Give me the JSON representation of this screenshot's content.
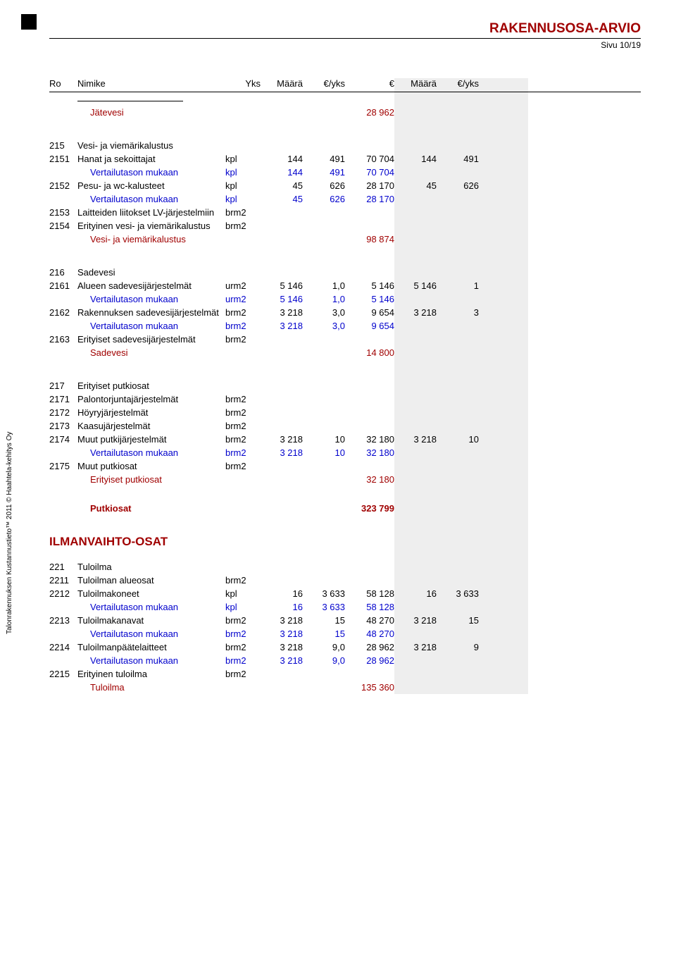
{
  "header": {
    "title": "RAKENNUSOSA-ARVIO",
    "page": "Sivu 10/19"
  },
  "columns": [
    "Ro",
    "Nimike",
    "Yks",
    "Määrä",
    "€/yks",
    "€",
    "Määrä",
    "€/yks",
    ""
  ],
  "vertical_text": "Talonrakennuksen Kustannustieto™ 2011 © Haahtela-kehitys Oy",
  "big_heading": "ILMANVAIHTO-OSAT",
  "sections": [
    {
      "pre_sep": true,
      "rows": [
        {
          "cls": "red indent",
          "c": [
            "",
            "Jätevesi",
            "",
            "",
            "",
            "28 962",
            "",
            "",
            ""
          ]
        }
      ]
    },
    {
      "rows": [
        {
          "cls": "",
          "c": [
            "215",
            "Vesi- ja viemärikalustus",
            "",
            "",
            "",
            "",
            "",
            "",
            ""
          ]
        },
        {
          "cls": "",
          "c": [
            "2151",
            "Hanat ja sekoittajat",
            "kpl",
            "144",
            "491",
            "70 704",
            "144",
            "491",
            ""
          ]
        },
        {
          "cls": "blue indent",
          "c": [
            "",
            "Vertailutason mukaan",
            "kpl",
            "144",
            "491",
            "70 704",
            "",
            "",
            ""
          ]
        },
        {
          "cls": "",
          "c": [
            "2152",
            "Pesu- ja wc-kalusteet",
            "kpl",
            "45",
            "626",
            "28 170",
            "45",
            "626",
            ""
          ]
        },
        {
          "cls": "blue indent",
          "c": [
            "",
            "Vertailutason mukaan",
            "kpl",
            "45",
            "626",
            "28 170",
            "",
            "",
            ""
          ]
        },
        {
          "cls": "",
          "c": [
            "2153",
            "Laitteiden liitokset LV-järjestelmiin",
            "brm2",
            "",
            "",
            "",
            "",
            "",
            ""
          ]
        },
        {
          "cls": "",
          "c": [
            "2154",
            "Erityinen vesi- ja viemärikalustus",
            "brm2",
            "",
            "",
            "",
            "",
            "",
            ""
          ]
        },
        {
          "cls": "red indent",
          "c": [
            "",
            "Vesi- ja viemärikalustus",
            "",
            "",
            "",
            "98 874",
            "",
            "",
            ""
          ]
        }
      ]
    },
    {
      "rows": [
        {
          "cls": "",
          "c": [
            "216",
            "Sadevesi",
            "",
            "",
            "",
            "",
            "",
            "",
            ""
          ]
        },
        {
          "cls": "",
          "c": [
            "2161",
            "Alueen sadevesijärjestelmät",
            "urm2",
            "5 146",
            "1,0",
            "5 146",
            "5 146",
            "1",
            ""
          ]
        },
        {
          "cls": "blue indent",
          "c": [
            "",
            "Vertailutason mukaan",
            "urm2",
            "5 146",
            "1,0",
            "5 146",
            "",
            "",
            ""
          ]
        },
        {
          "cls": "",
          "c": [
            "2162",
            "Rakennuksen sadevesijärjestelmät",
            "brm2",
            "3 218",
            "3,0",
            "9 654",
            "3 218",
            "3",
            ""
          ]
        },
        {
          "cls": "blue indent",
          "c": [
            "",
            "Vertailutason mukaan",
            "brm2",
            "3 218",
            "3,0",
            "9 654",
            "",
            "",
            ""
          ]
        },
        {
          "cls": "",
          "c": [
            "2163",
            "Erityiset sadevesijärjestelmät",
            "brm2",
            "",
            "",
            "",
            "",
            "",
            ""
          ]
        },
        {
          "cls": "red indent",
          "c": [
            "",
            "Sadevesi",
            "",
            "",
            "",
            "14 800",
            "",
            "",
            ""
          ]
        }
      ]
    },
    {
      "rows": [
        {
          "cls": "",
          "c": [
            "217",
            "Erityiset putkiosat",
            "",
            "",
            "",
            "",
            "",
            "",
            ""
          ]
        },
        {
          "cls": "",
          "c": [
            "2171",
            "Palontorjuntajärjestelmät",
            "brm2",
            "",
            "",
            "",
            "",
            "",
            ""
          ]
        },
        {
          "cls": "",
          "c": [
            "2172",
            "Höyryjärjestelmät",
            "brm2",
            "",
            "",
            "",
            "",
            "",
            ""
          ]
        },
        {
          "cls": "",
          "c": [
            "2173",
            "Kaasujärjestelmät",
            "brm2",
            "",
            "",
            "",
            "",
            "",
            ""
          ]
        },
        {
          "cls": "",
          "c": [
            "2174",
            "Muut putkijärjestelmät",
            "brm2",
            "3 218",
            "10",
            "32 180",
            "3 218",
            "10",
            ""
          ]
        },
        {
          "cls": "blue indent",
          "c": [
            "",
            "Vertailutason mukaan",
            "brm2",
            "3 218",
            "10",
            "32 180",
            "",
            "",
            ""
          ]
        },
        {
          "cls": "",
          "c": [
            "2175",
            "Muut putkiosat",
            "brm2",
            "",
            "",
            "",
            "",
            "",
            ""
          ]
        },
        {
          "cls": "red indent",
          "c": [
            "",
            "Erityiset putkiosat",
            "",
            "",
            "",
            "32 180",
            "",
            "",
            ""
          ]
        }
      ],
      "after_rows": [
        {
          "cls": "red bold indent",
          "c": [
            "",
            "Putkiosat",
            "",
            "",
            "",
            "323 799",
            "",
            "",
            ""
          ]
        }
      ]
    },
    {
      "rows": [
        {
          "cls": "",
          "c": [
            "221",
            "Tuloilma",
            "",
            "",
            "",
            "",
            "",
            "",
            ""
          ]
        },
        {
          "cls": "",
          "c": [
            "2211",
            "Tuloilman alueosat",
            "brm2",
            "",
            "",
            "",
            "",
            "",
            ""
          ]
        },
        {
          "cls": "",
          "c": [
            "2212",
            "Tuloilmakoneet",
            "kpl",
            "16",
            "3 633",
            "58 128",
            "16",
            "3 633",
            ""
          ]
        },
        {
          "cls": "blue indent",
          "c": [
            "",
            "Vertailutason mukaan",
            "kpl",
            "16",
            "3 633",
            "58 128",
            "",
            "",
            ""
          ]
        },
        {
          "cls": "",
          "c": [
            "2213",
            "Tuloilmakanavat",
            "brm2",
            "3 218",
            "15",
            "48 270",
            "3 218",
            "15",
            ""
          ]
        },
        {
          "cls": "blue indent",
          "c": [
            "",
            "Vertailutason mukaan",
            "brm2",
            "3 218",
            "15",
            "48 270",
            "",
            "",
            ""
          ]
        },
        {
          "cls": "",
          "c": [
            "2214",
            "Tuloilmanpäätelaitteet",
            "brm2",
            "3 218",
            "9,0",
            "28 962",
            "3 218",
            "9",
            ""
          ]
        },
        {
          "cls": "blue indent",
          "c": [
            "",
            "Vertailutason mukaan",
            "brm2",
            "3 218",
            "9,0",
            "28 962",
            "",
            "",
            ""
          ]
        },
        {
          "cls": "",
          "c": [
            "2215",
            "Erityinen tuloilma",
            "brm2",
            "",
            "",
            "",
            "",
            "",
            ""
          ]
        },
        {
          "cls": "red indent",
          "c": [
            "",
            "Tuloilma",
            "",
            "",
            "",
            "135 360",
            "",
            "",
            ""
          ]
        }
      ]
    }
  ]
}
